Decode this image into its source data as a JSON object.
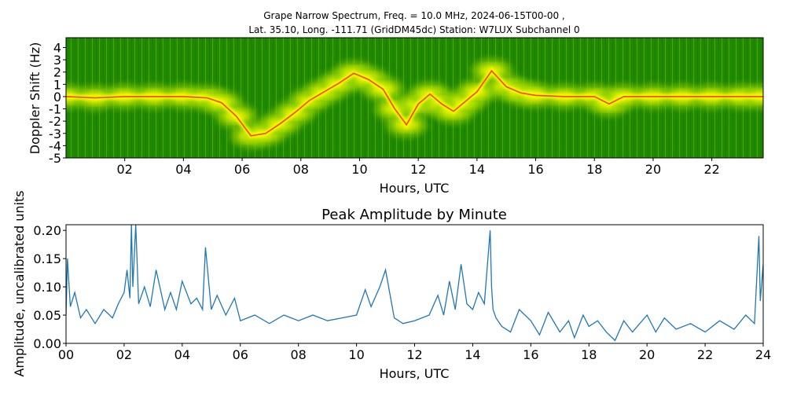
{
  "chart_data": [
    {
      "type": "heatmap",
      "title_line1": "Grape Narrow Spectrum, Freq. = 10.0 MHz, 2024-06-15T00-00 ,",
      "title_line2": "Lat.  35.10, Long. -111.71 (GridDM45dc) Station: W7LUX Subchannel 0",
      "xlabel": "Hours, UTC",
      "ylabel": "Doppler Shift (Hz)",
      "xlim": [
        0,
        23.75
      ],
      "ylim": [
        -5,
        4.8
      ],
      "x_ticks": [
        "02",
        "04",
        "06",
        "08",
        "10",
        "12",
        "14",
        "16",
        "18",
        "20",
        "22"
      ],
      "x_tick_values": [
        2,
        4,
        6,
        8,
        10,
        12,
        14,
        16,
        18,
        20,
        22
      ],
      "y_ticks": [
        "4",
        "3",
        "2",
        "1",
        "0",
        "-1",
        "-2",
        "-3",
        "-4",
        "-5"
      ],
      "y_tick_values": [
        4,
        3,
        2,
        1,
        0,
        -1,
        -2,
        -3,
        -4,
        -5
      ],
      "colors": {
        "background": "#1f8a00",
        "mid": "#8ed000",
        "high": "#ffff00",
        "peak": "#ff3000"
      },
      "trace": {
        "x": [
          0,
          1,
          2,
          3,
          4,
          4.8,
          5.3,
          5.8,
          6.3,
          6.8,
          7.3,
          7.8,
          8.3,
          8.8,
          9.3,
          9.8,
          10.3,
          10.8,
          11.2,
          11.6,
          12,
          12.4,
          12.8,
          13.2,
          13.6,
          14,
          14.5,
          15,
          15.5,
          16,
          17,
          18,
          18.5,
          19,
          20,
          21,
          22,
          23,
          23.75
        ],
        "y": [
          0,
          -0.1,
          0,
          0,
          0,
          -0.1,
          -0.5,
          -1.6,
          -3.2,
          -3.0,
          -2.2,
          -1.3,
          -0.3,
          0.4,
          1.1,
          1.9,
          1.4,
          0.6,
          -1.0,
          -2.3,
          -0.6,
          0.2,
          -0.6,
          -1.2,
          -0.4,
          0.4,
          2.1,
          0.8,
          0.3,
          0.1,
          0,
          0,
          -0.6,
          0,
          0,
          0,
          0,
          0,
          0
        ]
      }
    },
    {
      "type": "line",
      "title": "Peak Amplitude by Minute",
      "xlabel": "Hours, UTC",
      "ylabel": "Amplitude, uncalibrated units",
      "xlim": [
        0,
        24
      ],
      "ylim": [
        0,
        0.21
      ],
      "x_ticks": [
        "00",
        "02",
        "04",
        "06",
        "08",
        "10",
        "12",
        "14",
        "16",
        "18",
        "20",
        "22",
        "24"
      ],
      "x_tick_values": [
        0,
        2,
        4,
        6,
        8,
        10,
        12,
        14,
        16,
        18,
        20,
        22,
        24
      ],
      "y_ticks": [
        "0.00",
        "0.05",
        "0.10",
        "0.15",
        "0.20"
      ],
      "y_tick_values": [
        0,
        0.05,
        0.1,
        0.15,
        0.2
      ],
      "line_color": "#1f77b4",
      "series": [
        {
          "x": [
            0,
            0.05,
            0.15,
            0.3,
            0.5,
            0.7,
            1,
            1.3,
            1.6,
            1.8,
            2,
            2.1,
            2.2,
            2.25,
            2.3,
            2.4,
            2.5,
            2.7,
            2.9,
            3.1,
            3.4,
            3.6,
            3.8,
            4,
            4.3,
            4.5,
            4.7,
            4.8,
            5,
            5.2,
            5.5,
            5.8,
            6,
            6.5,
            7,
            7.5,
            8,
            8.5,
            9,
            9.5,
            10,
            10.3,
            10.5,
            10.8,
            11,
            11.3,
            11.6,
            12,
            12.5,
            12.8,
            13,
            13.2,
            13.4,
            13.6,
            13.8,
            14,
            14.2,
            14.4,
            14.6,
            14.65,
            14.7,
            14.8,
            15,
            15.3,
            15.6,
            16,
            16.3,
            16.6,
            17,
            17.3,
            17.5,
            17.8,
            18,
            18.3,
            18.6,
            18.9,
            19.2,
            19.5,
            20,
            20.3,
            20.6,
            21,
            21.5,
            22,
            22.5,
            23,
            23.4,
            23.7,
            23.85,
            23.9,
            24
          ],
          "y": [
            0.05,
            0.15,
            0.065,
            0.09,
            0.045,
            0.06,
            0.035,
            0.06,
            0.045,
            0.07,
            0.09,
            0.13,
            0.08,
            0.21,
            0.1,
            0.21,
            0.07,
            0.1,
            0.065,
            0.13,
            0.06,
            0.09,
            0.06,
            0.11,
            0.07,
            0.08,
            0.06,
            0.17,
            0.06,
            0.085,
            0.05,
            0.08,
            0.04,
            0.05,
            0.035,
            0.05,
            0.04,
            0.05,
            0.04,
            0.045,
            0.05,
            0.095,
            0.065,
            0.1,
            0.13,
            0.045,
            0.035,
            0.04,
            0.05,
            0.085,
            0.05,
            0.11,
            0.06,
            0.14,
            0.07,
            0.06,
            0.09,
            0.07,
            0.2,
            0.1,
            0.06,
            0.045,
            0.03,
            0.02,
            0.06,
            0.04,
            0.015,
            0.055,
            0.02,
            0.04,
            0.01,
            0.05,
            0.03,
            0.04,
            0.02,
            0.005,
            0.04,
            0.02,
            0.05,
            0.02,
            0.045,
            0.025,
            0.035,
            0.02,
            0.04,
            0.025,
            0.05,
            0.035,
            0.19,
            0.075,
            0.14
          ]
        }
      ]
    }
  ]
}
